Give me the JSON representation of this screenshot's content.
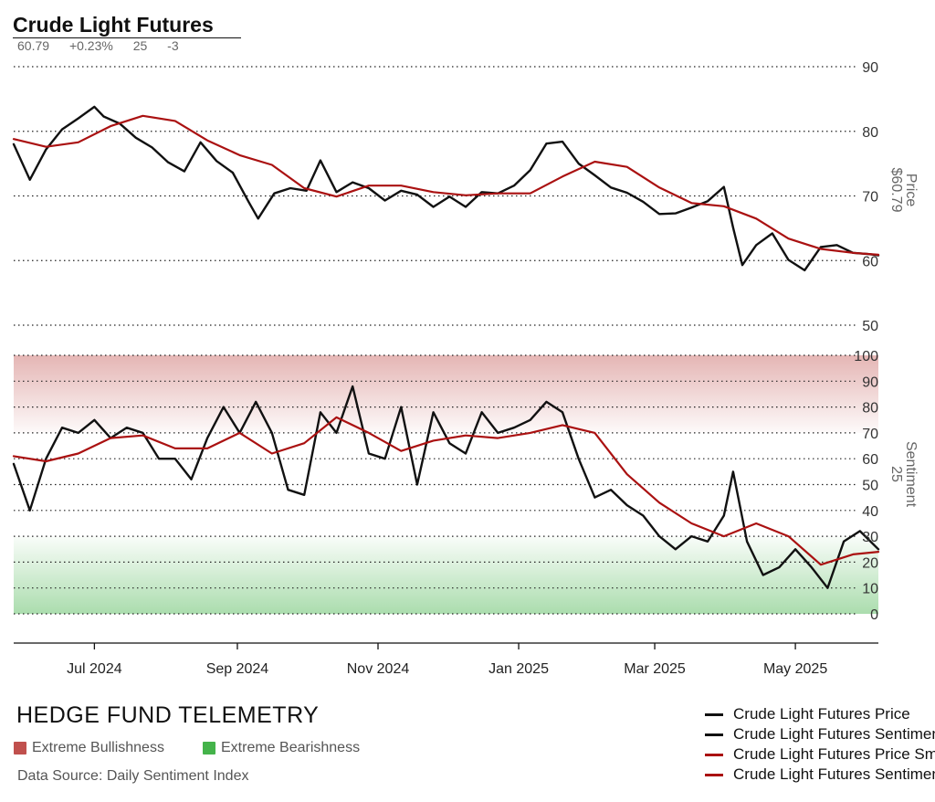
{
  "header": {
    "title": "Crude Light Futures",
    "stats": [
      "60.79",
      "+0.23%",
      "25",
      "-3"
    ]
  },
  "colors": {
    "price_line": "#111111",
    "ma_line": "#aa1111",
    "bull_zone": "#c0504d",
    "bear_zone": "#44b34a",
    "grid": "#222222"
  },
  "chart_data": [
    {
      "type": "line",
      "panel": "price",
      "axis_title": "Price",
      "axis_value": "$60.79",
      "x_range": [
        "2024-05-27",
        "2025-06-06"
      ],
      "ylim": [
        50,
        90
      ],
      "yticks": [
        50,
        60,
        70,
        80,
        90
      ],
      "grid": "horizontal-dotted",
      "series": [
        {
          "name": "Crude Light Futures Price",
          "color": "#111111",
          "x": [
            "2024-05-27",
            "2024-06-03",
            "2024-06-10",
            "2024-06-17",
            "2024-06-24",
            "2024-07-01",
            "2024-07-05",
            "2024-07-12",
            "2024-07-19",
            "2024-07-26",
            "2024-08-02",
            "2024-08-09",
            "2024-08-16",
            "2024-08-23",
            "2024-08-30",
            "2024-09-06",
            "2024-09-10",
            "2024-09-17",
            "2024-09-24",
            "2024-10-01",
            "2024-10-07",
            "2024-10-14",
            "2024-10-21",
            "2024-10-28",
            "2024-11-04",
            "2024-11-11",
            "2024-11-18",
            "2024-11-25",
            "2024-12-02",
            "2024-12-09",
            "2024-12-16",
            "2024-12-23",
            "2024-12-30",
            "2025-01-06",
            "2025-01-13",
            "2025-01-20",
            "2025-01-27",
            "2025-02-03",
            "2025-02-10",
            "2025-02-17",
            "2025-02-24",
            "2025-03-03",
            "2025-03-10",
            "2025-03-17",
            "2025-03-24",
            "2025-03-31",
            "2025-04-04",
            "2025-04-08",
            "2025-04-14",
            "2025-04-21",
            "2025-04-28",
            "2025-05-05",
            "2025-05-12",
            "2025-05-19",
            "2025-05-26",
            "2025-06-02",
            "2025-06-06"
          ],
          "values": [
            78.0,
            72.5,
            77.2,
            80.3,
            82.0,
            83.8,
            82.3,
            81.2,
            79.0,
            77.5,
            75.2,
            73.8,
            78.3,
            75.4,
            73.6,
            69.0,
            66.5,
            70.4,
            71.2,
            70.8,
            75.5,
            70.6,
            72.1,
            71.2,
            69.3,
            70.8,
            70.2,
            68.3,
            69.9,
            68.3,
            70.6,
            70.4,
            71.6,
            74.0,
            78.1,
            78.4,
            75.0,
            73.2,
            71.3,
            70.5,
            69.1,
            67.2,
            67.3,
            68.2,
            69.2,
            71.4,
            65.1,
            59.3,
            62.4,
            64.2,
            60.1,
            58.5,
            62.1,
            62.4,
            61.2,
            61.0,
            60.8
          ]
        },
        {
          "name": "Crude Light Futures Price Smoothed",
          "color": "#aa1111",
          "x": [
            "2024-05-27",
            "2024-06-10",
            "2024-06-24",
            "2024-07-08",
            "2024-07-22",
            "2024-08-05",
            "2024-08-19",
            "2024-09-02",
            "2024-09-16",
            "2024-09-30",
            "2024-10-14",
            "2024-10-28",
            "2024-11-11",
            "2024-11-25",
            "2024-12-09",
            "2024-12-23",
            "2025-01-06",
            "2025-01-20",
            "2025-02-03",
            "2025-02-17",
            "2025-03-03",
            "2025-03-17",
            "2025-03-31",
            "2025-04-14",
            "2025-04-28",
            "2025-05-12",
            "2025-05-26",
            "2025-06-06"
          ],
          "values": [
            78.8,
            77.6,
            78.3,
            80.8,
            82.4,
            81.6,
            78.6,
            76.3,
            74.8,
            71.2,
            69.9,
            71.6,
            71.6,
            70.6,
            70.1,
            70.4,
            70.4,
            73.0,
            75.3,
            74.5,
            71.3,
            68.9,
            68.4,
            66.5,
            63.4,
            61.8,
            61.2,
            60.9
          ]
        }
      ]
    },
    {
      "type": "line",
      "panel": "sentiment",
      "axis_title": "Sentiment",
      "axis_value": "25",
      "x_range": [
        "2024-05-27",
        "2025-06-06"
      ],
      "ylim": [
        0,
        100
      ],
      "yticks": [
        0,
        10,
        20,
        30,
        40,
        50,
        60,
        70,
        80,
        90,
        100
      ],
      "grid": "horizontal-dotted",
      "zones": [
        {
          "label": "Extreme Bullishness",
          "from": 70,
          "to": 100,
          "color": "#c0504d"
        },
        {
          "label": "Extreme Bearishness",
          "from": 0,
          "to": 30,
          "color": "#44b34a"
        }
      ],
      "series": [
        {
          "name": "Crude Light Futures Sentiment",
          "color": "#111111",
          "x": [
            "2024-05-27",
            "2024-06-03",
            "2024-06-10",
            "2024-06-17",
            "2024-06-24",
            "2024-07-01",
            "2024-07-08",
            "2024-07-15",
            "2024-07-22",
            "2024-07-29",
            "2024-08-05",
            "2024-08-12",
            "2024-08-19",
            "2024-08-26",
            "2024-09-02",
            "2024-09-09",
            "2024-09-16",
            "2024-09-23",
            "2024-09-30",
            "2024-10-07",
            "2024-10-14",
            "2024-10-21",
            "2024-10-28",
            "2024-11-04",
            "2024-11-11",
            "2024-11-18",
            "2024-11-25",
            "2024-12-02",
            "2024-12-09",
            "2024-12-16",
            "2024-12-23",
            "2024-12-30",
            "2025-01-06",
            "2025-01-13",
            "2025-01-20",
            "2025-01-27",
            "2025-02-03",
            "2025-02-10",
            "2025-02-17",
            "2025-02-24",
            "2025-03-03",
            "2025-03-10",
            "2025-03-17",
            "2025-03-24",
            "2025-03-31",
            "2025-04-04",
            "2025-04-10",
            "2025-04-17",
            "2025-04-24",
            "2025-05-01",
            "2025-05-08",
            "2025-05-15",
            "2025-05-22",
            "2025-05-29",
            "2025-06-06"
          ],
          "values": [
            58,
            40,
            60,
            72,
            70,
            75,
            68,
            72,
            70,
            60,
            60,
            52,
            68,
            80,
            70,
            82,
            70,
            48,
            46,
            78,
            70,
            88,
            62,
            60,
            80,
            50,
            78,
            66,
            62,
            78,
            70,
            72,
            75,
            82,
            78,
            60,
            45,
            48,
            42,
            38,
            30,
            25,
            30,
            28,
            38,
            55,
            28,
            15,
            18,
            25,
            18,
            10,
            28,
            32,
            25
          ]
        },
        {
          "name": "Crude Light Futures Sentiment Smoothed",
          "color": "#aa1111",
          "x": [
            "2024-05-27",
            "2024-06-10",
            "2024-06-24",
            "2024-07-08",
            "2024-07-22",
            "2024-08-05",
            "2024-08-19",
            "2024-09-02",
            "2024-09-16",
            "2024-09-30",
            "2024-10-14",
            "2024-10-28",
            "2024-11-11",
            "2024-11-25",
            "2024-12-09",
            "2024-12-23",
            "2025-01-06",
            "2025-01-20",
            "2025-02-03",
            "2025-02-17",
            "2025-03-03",
            "2025-03-17",
            "2025-03-31",
            "2025-04-14",
            "2025-04-28",
            "2025-05-12",
            "2025-05-26",
            "2025-06-06"
          ],
          "values": [
            61,
            59,
            62,
            68,
            69,
            64,
            64,
            70,
            62,
            66,
            76,
            70,
            63,
            67,
            69,
            68,
            70,
            73,
            70,
            54,
            43,
            35,
            30,
            35,
            30,
            19,
            23,
            24
          ]
        }
      ]
    }
  ],
  "x_axis": {
    "ticks": [
      {
        "date": "2024-07-01",
        "label": "Jul 2024"
      },
      {
        "date": "2024-09-01",
        "label": "Sep 2024"
      },
      {
        "date": "2024-11-01",
        "label": "Nov 2024"
      },
      {
        "date": "2025-01-01",
        "label": "Jan 2025"
      },
      {
        "date": "2025-03-01",
        "label": "Mar 2025"
      },
      {
        "date": "2025-05-01",
        "label": "May 2025"
      }
    ]
  },
  "footer": {
    "brand": "HEDGE FUND TELEMETRY",
    "zone_legend": [
      {
        "label": "Extreme Bullishness",
        "color": "#c0504d"
      },
      {
        "label": "Extreme Bearishness",
        "color": "#44b34a"
      }
    ],
    "source": "Data Source: Daily Sentiment Index",
    "series_legend": [
      {
        "label": "Crude Light Futures Price",
        "color": "#111111"
      },
      {
        "label": "Crude Light Futures Sentiment",
        "color": "#111111"
      },
      {
        "label": "Crude Light Futures Price Smoothed",
        "color": "#aa1111"
      },
      {
        "label": "Crude Light Futures Sentiment Smoothed",
        "color": "#aa1111"
      }
    ]
  }
}
